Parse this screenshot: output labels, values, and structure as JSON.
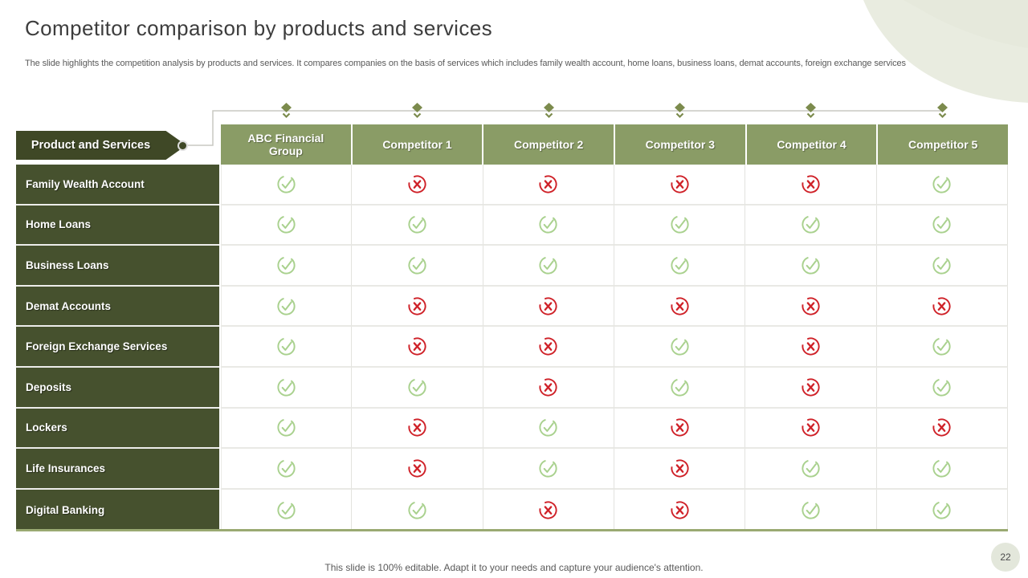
{
  "slide": {
    "title": "Competitor comparison by products and services",
    "subtitle": "The slide highlights the competition analysis by products and services. It compares companies on the basis of services which includes family wealth account, home loans, business loans, demat accounts, foreign exchange services",
    "footer": "This slide is 100% editable. Adapt it to your needs and capture your audience's attention.",
    "page_number": "22"
  },
  "table": {
    "corner_label": "Product and Services",
    "columns": [
      "ABC Financial Group",
      "Competitor 1",
      "Competitor 2",
      "Competitor 3",
      "Competitor 4",
      "Competitor 5"
    ],
    "rows": [
      {
        "label": "Family Wealth Account",
        "values": [
          true,
          false,
          false,
          false,
          false,
          true
        ]
      },
      {
        "label": "Home Loans",
        "values": [
          true,
          true,
          true,
          true,
          true,
          true
        ]
      },
      {
        "label": "Business Loans",
        "values": [
          true,
          true,
          true,
          true,
          true,
          true
        ]
      },
      {
        "label": "Demat Accounts",
        "values": [
          true,
          false,
          false,
          false,
          false,
          false
        ]
      },
      {
        "label": "Foreign Exchange Services",
        "values": [
          true,
          false,
          false,
          true,
          false,
          true
        ]
      },
      {
        "label": "Deposits",
        "values": [
          true,
          true,
          false,
          true,
          false,
          true
        ]
      },
      {
        "label": "Lockers",
        "values": [
          true,
          false,
          true,
          false,
          false,
          false
        ]
      },
      {
        "label": "Life Insurances",
        "values": [
          true,
          false,
          true,
          false,
          true,
          true
        ]
      },
      {
        "label": "Digital Banking",
        "values": [
          true,
          true,
          false,
          false,
          true,
          true
        ]
      }
    ],
    "icons": {
      "available": "check-circle-icon",
      "unavailable": "cross-circle-icon",
      "column_marker": "diamond-chevron-icon"
    },
    "colors": {
      "header_bg": "#8a9c66",
      "row_label_bg": "#46512e",
      "tag_bg": "#3f4826",
      "check": "#a9d18e",
      "cross": "#cf2128",
      "table_bottom_border": "#9aaa72",
      "connector_line": "#c8c8c2",
      "diamond": "#7c8b4d",
      "swoosh": "#e9ece0",
      "page_circle_bg": "#e3e7db"
    }
  },
  "chart_data": {
    "type": "table",
    "title": "Competitor comparison by products and services",
    "columns": [
      "ABC Financial Group",
      "Competitor 1",
      "Competitor 2",
      "Competitor 3",
      "Competitor 4",
      "Competitor 5"
    ],
    "row_labels": [
      "Family Wealth Account",
      "Home Loans",
      "Business Loans",
      "Demat Accounts",
      "Foreign Exchange Services",
      "Deposits",
      "Lockers",
      "Life Insurances",
      "Digital Banking"
    ],
    "values": [
      [
        true,
        false,
        false,
        false,
        false,
        true
      ],
      [
        true,
        true,
        true,
        true,
        true,
        true
      ],
      [
        true,
        true,
        true,
        true,
        true,
        true
      ],
      [
        true,
        false,
        false,
        false,
        false,
        false
      ],
      [
        true,
        false,
        false,
        true,
        false,
        true
      ],
      [
        true,
        true,
        false,
        true,
        false,
        true
      ],
      [
        true,
        false,
        true,
        false,
        false,
        false
      ],
      [
        true,
        false,
        true,
        false,
        true,
        true
      ],
      [
        true,
        true,
        false,
        false,
        true,
        true
      ]
    ],
    "legend": {
      "true": "service offered (green check)",
      "false": "service not offered (red cross)"
    }
  }
}
